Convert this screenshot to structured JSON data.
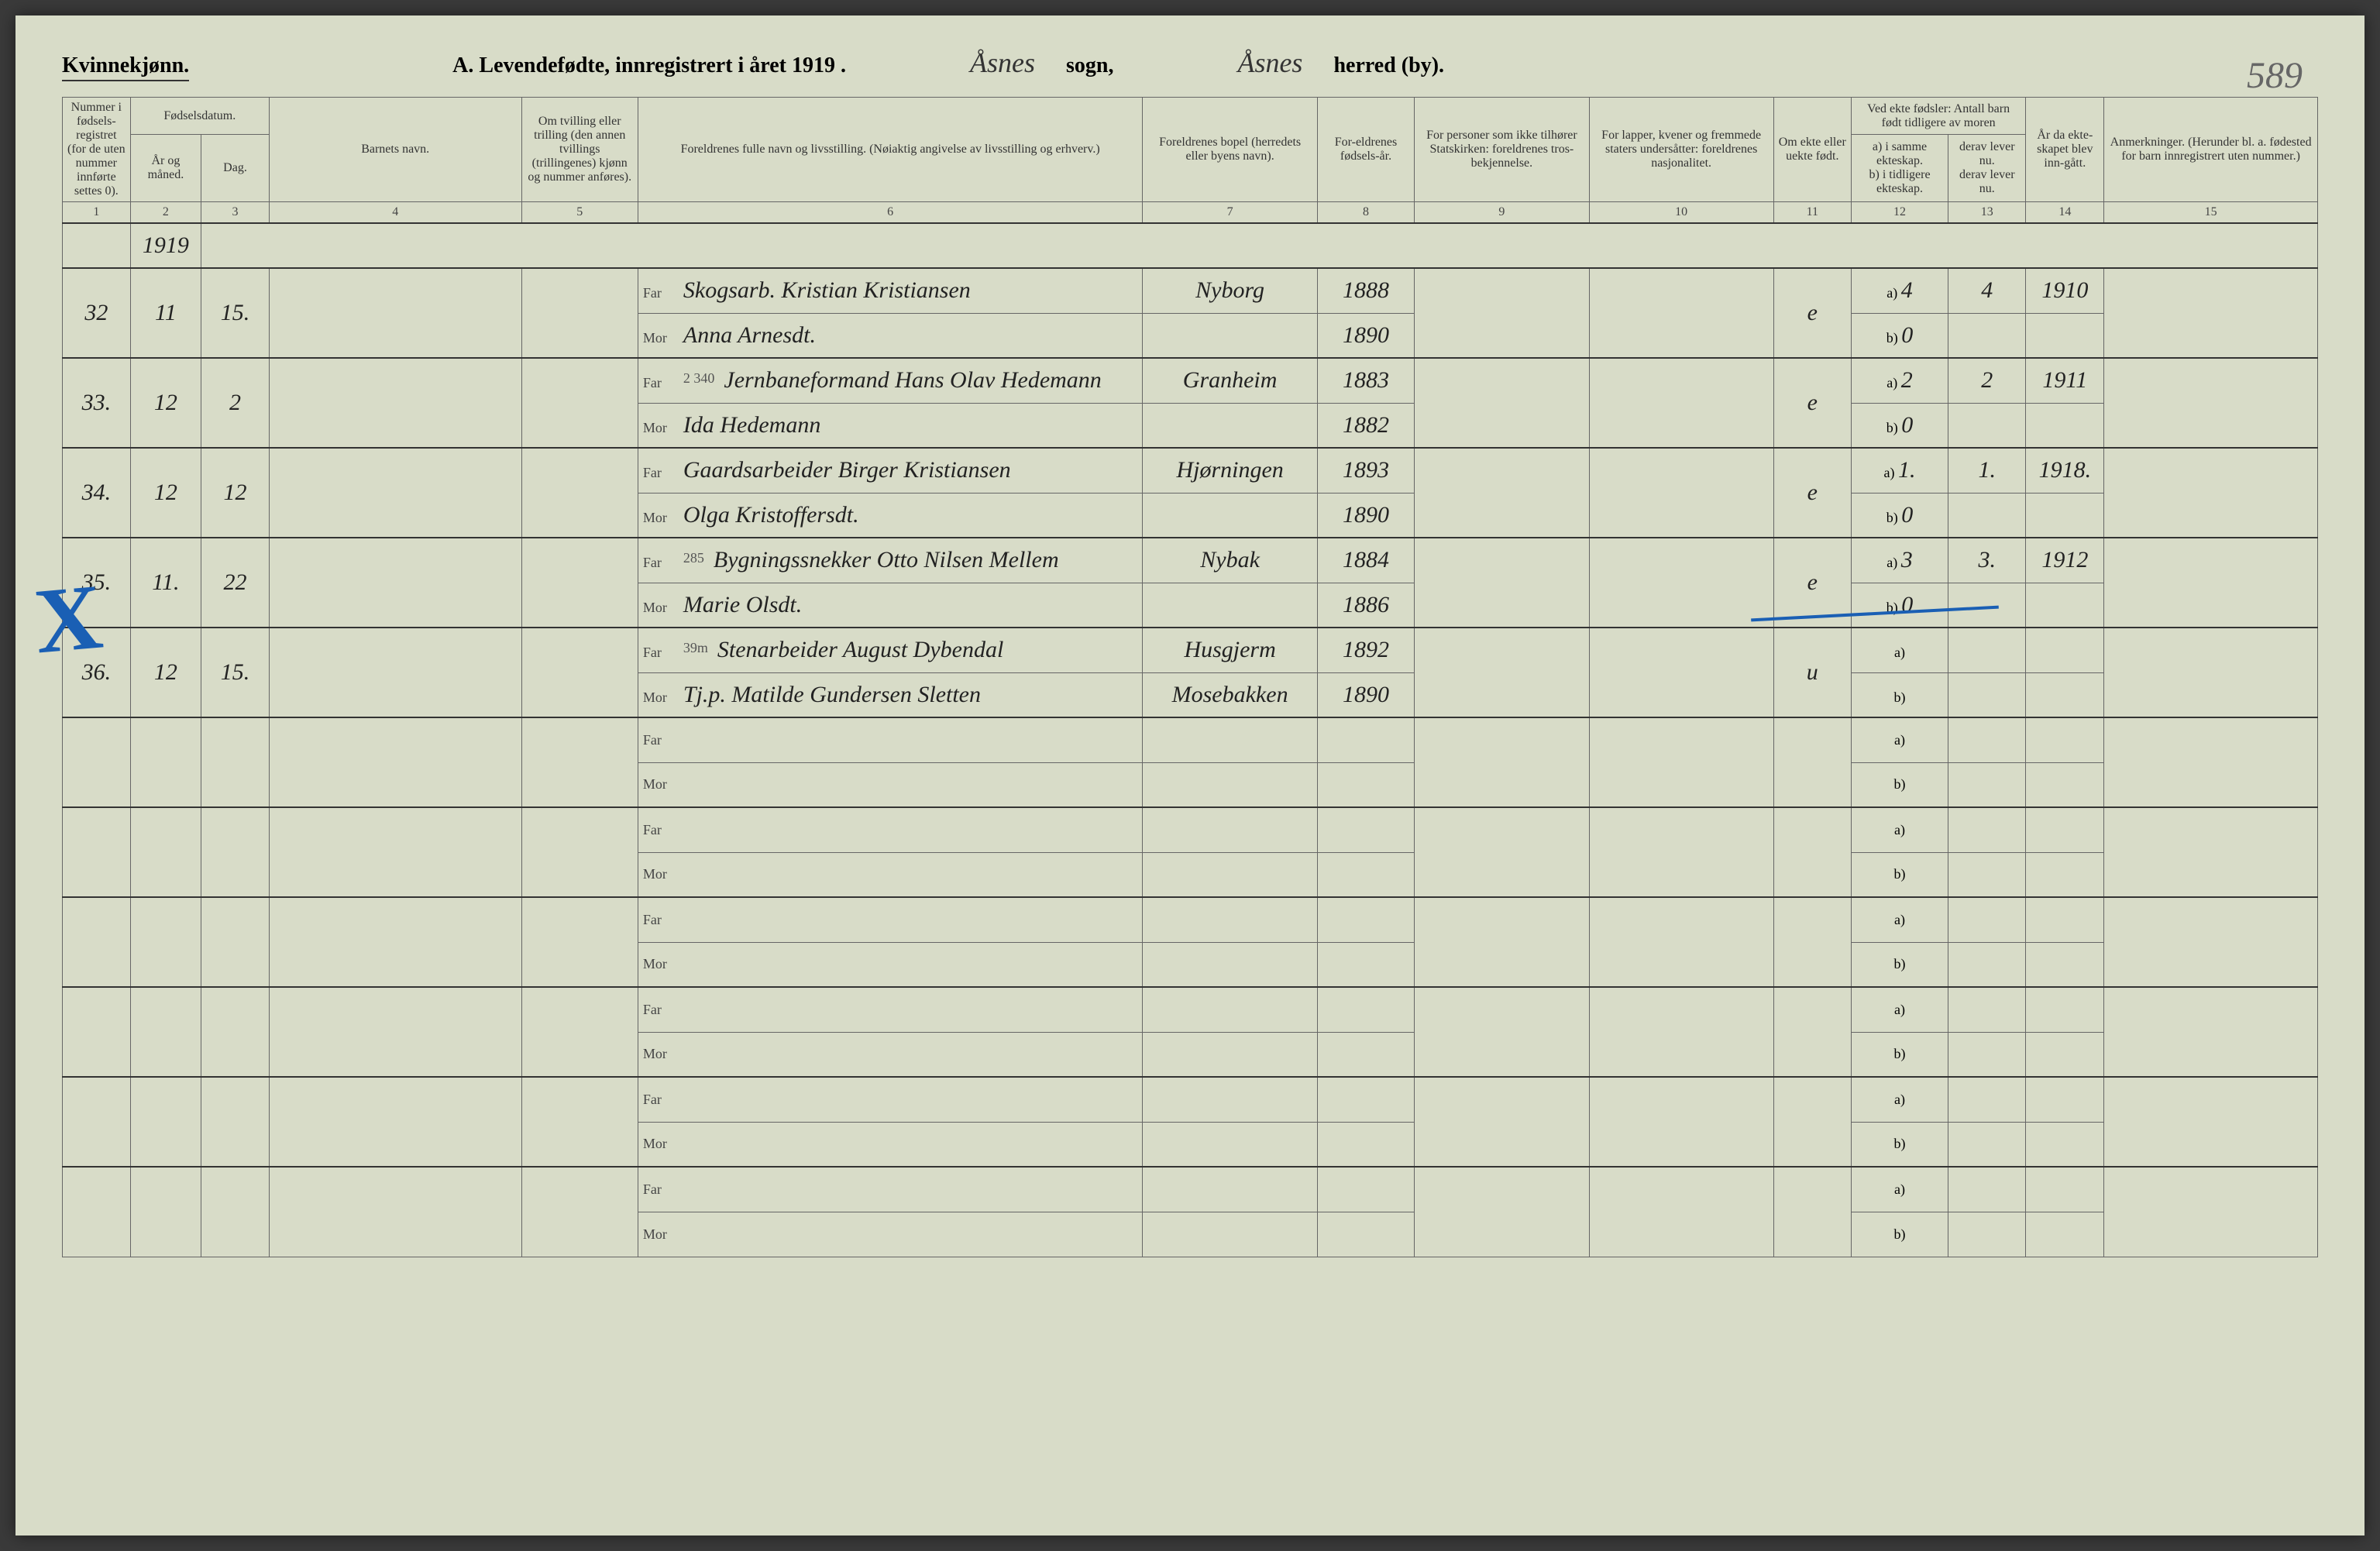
{
  "header": {
    "gender": "Kvinnekjønn.",
    "title_prefix": "A.  Levendefødte, innregistrert i året 191",
    "year_suffix": "9 .",
    "sogn_name": "Åsnes",
    "sogn_label": "sogn,",
    "herred_name": "Åsnes",
    "herred_label": "herred (by).",
    "page_number": "589"
  },
  "columns": {
    "h1": "Nummer i fødsels-registret (for de uten nummer innførte settes 0).",
    "h2_top": "Fødselsdatum.",
    "h2_ar": "År og måned.",
    "h2_dag": "Dag.",
    "h4": "Barnets navn.",
    "h5": "Om tvilling eller trilling (den annen tvillings (trillingenes) kjønn og nummer anføres).",
    "h6": "Foreldrenes fulle navn og livsstilling.\n(Nøiaktig angivelse av livsstilling og erhverv.)",
    "h7": "Foreldrenes bopel (herredets eller byens navn).",
    "h8": "For-eldrenes fødsels-år.",
    "h9": "For personer som ikke tilhører Statskirken: foreldrenes tros-bekjennelse.",
    "h10": "For lapper, kvener og fremmede staters undersåtter: foreldrenes nasjonalitet.",
    "h11": "Om ekte eller uekte født.",
    "h12_top": "Ved ekte fødsler: Antall barn født tidligere av moren",
    "h12_a": "a) i samme ekteskap.",
    "h12_b": "b) i tidligere ekteskap.",
    "h13": "derav lever nu.",
    "h13_b": "derav lever nu.",
    "h14": "År da ekte-skapet blev inn-gått.",
    "h15": "Anmerkninger.\n(Herunder bl. a. fødested for barn innregistrert uten nummer.)",
    "colnums": [
      "1",
      "2",
      "3",
      "4",
      "5",
      "6",
      "7",
      "8",
      "9",
      "10",
      "11",
      "12",
      "13",
      "14",
      "15"
    ]
  },
  "far_label": "Far",
  "mor_label": "Mor",
  "a_label": "a)",
  "b_label": "b)",
  "year_header": "1919",
  "rows": [
    {
      "num": "32",
      "ar": "11",
      "dag": "15.",
      "far": "Skogsarb. Kristian Kristiansen",
      "mor": "Anna Arnesdt.",
      "bopel": "Nyborg",
      "far_aar": "1888",
      "mor_aar": "1890",
      "ekte": "e",
      "a_val": "4",
      "a13": "4",
      "aar_ekte": "1910",
      "b_val": "0"
    },
    {
      "num": "33.",
      "ar": "12",
      "dag": "2",
      "far": "Jernbaneformand Hans Olav Hedemann",
      "mor": "Ida Hedemann",
      "bopel": "Granheim",
      "far_aar": "1883",
      "mor_aar": "1882",
      "ekte": "e",
      "a_val": "2",
      "a13": "2",
      "aar_ekte": "1911",
      "b_val": "0",
      "note_top": "2 340"
    },
    {
      "num": "34.",
      "ar": "12",
      "dag": "12",
      "far": "Gaardsarbeider Birger Kristiansen",
      "mor": "Olga Kristoffersdt.",
      "bopel": "Hjørningen",
      "far_aar": "1893",
      "mor_aar": "1890",
      "ekte": "e",
      "a_val": "1.",
      "a13": "1.",
      "aar_ekte": "1918.",
      "b_val": "0"
    },
    {
      "num": "35.",
      "ar": "11.",
      "dag": "22",
      "far": "Bygningssnekker Otto Nilsen Mellem",
      "mor": "Marie Olsdt.",
      "bopel": "Nybak",
      "far_aar": "1884",
      "mor_aar": "1886",
      "ekte": "e",
      "a_val": "3",
      "a13": "3.",
      "aar_ekte": "1912",
      "b_val": "0",
      "note_top": "285"
    },
    {
      "num": "36.",
      "ar": "12",
      "dag": "15.",
      "far": "Stenarbeider August Dybendal",
      "mor": "Tj.p. Matilde Gundersen Sletten",
      "bopel": "Husgjerm",
      "bopel2": "Mosebakken",
      "far_aar": "1892",
      "mor_aar": "1890",
      "ekte": "u",
      "a_val": "",
      "a13": "",
      "aar_ekte": "",
      "b_val": "",
      "note_top": "39m"
    }
  ],
  "empty_rows": 6
}
